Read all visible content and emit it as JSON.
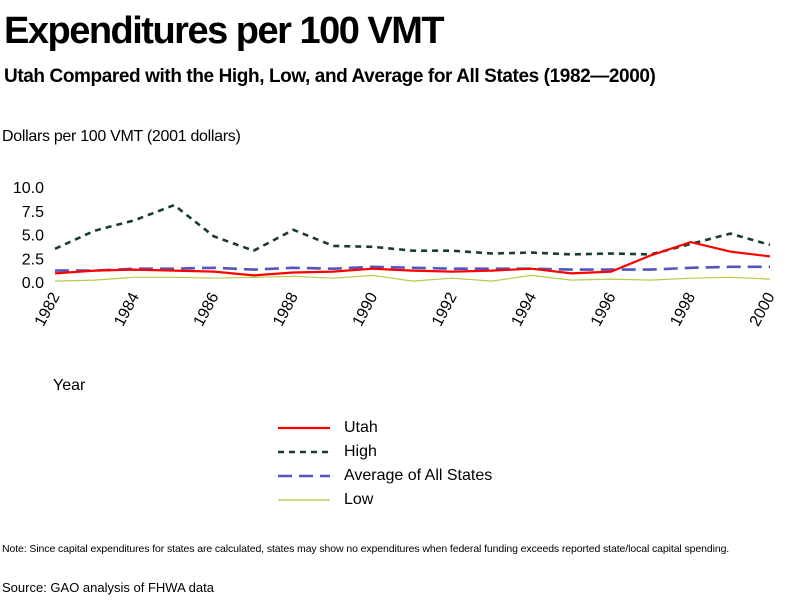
{
  "chart_data": {
    "type": "line",
    "title": "Expenditures per 100 VMT",
    "subtitle": "Utah Compared with the High, Low, and Average for All States (1982—2000)",
    "ylabel": "Dollars per 100 VMT (2001 dollars)",
    "xlabel": "Year",
    "x": [
      1982,
      1983,
      1984,
      1985,
      1986,
      1987,
      1988,
      1989,
      1990,
      1991,
      1992,
      1993,
      1994,
      1995,
      1996,
      1997,
      1998,
      1999,
      2000
    ],
    "x_ticks": [
      "1982",
      "1984",
      "1986",
      "1988",
      "1990",
      "1992",
      "1994",
      "1996",
      "1998",
      "2000"
    ],
    "y_ticks": [
      "10.0",
      "7.5",
      "5.0",
      "2.5",
      "0.0"
    ],
    "ylim": [
      0,
      10
    ],
    "grid": false,
    "legend_position": "below",
    "series": [
      {
        "name": "Utah",
        "color": "#ff0000",
        "style": "solid",
        "values": [
          0.9,
          1.2,
          1.3,
          1.2,
          1.1,
          0.7,
          1.0,
          1.1,
          1.4,
          1.2,
          1.1,
          1.2,
          1.4,
          0.9,
          1.1,
          2.8,
          4.2,
          3.2,
          2.7
        ]
      },
      {
        "name": "High",
        "color": "#1a3d2b",
        "style": "dotted",
        "values": [
          3.5,
          5.4,
          6.5,
          8.1,
          4.8,
          3.3,
          5.5,
          3.8,
          3.7,
          3.3,
          3.3,
          3.0,
          3.1,
          2.9,
          3.0,
          2.9,
          4.0,
          5.1,
          3.9
        ]
      },
      {
        "name": "Average of All States",
        "color": "#5555bb",
        "style": "dashed",
        "values": [
          1.2,
          1.2,
          1.4,
          1.4,
          1.5,
          1.3,
          1.5,
          1.4,
          1.6,
          1.5,
          1.4,
          1.4,
          1.4,
          1.3,
          1.3,
          1.3,
          1.5,
          1.6,
          1.6
        ]
      },
      {
        "name": "Low",
        "color": "#b8c94a",
        "style": "solid",
        "values": [
          0.1,
          0.2,
          0.5,
          0.5,
          0.4,
          0.5,
          0.6,
          0.4,
          0.7,
          0.1,
          0.4,
          0.1,
          0.7,
          0.2,
          0.3,
          0.2,
          0.4,
          0.5,
          0.3
        ]
      }
    ]
  },
  "note": "Note: Since capital expenditures for states are calculated, states may show no expenditures when federal funding exceeds reported state/local capital spending.",
  "source": "Source: GAO analysis of FHWA data"
}
